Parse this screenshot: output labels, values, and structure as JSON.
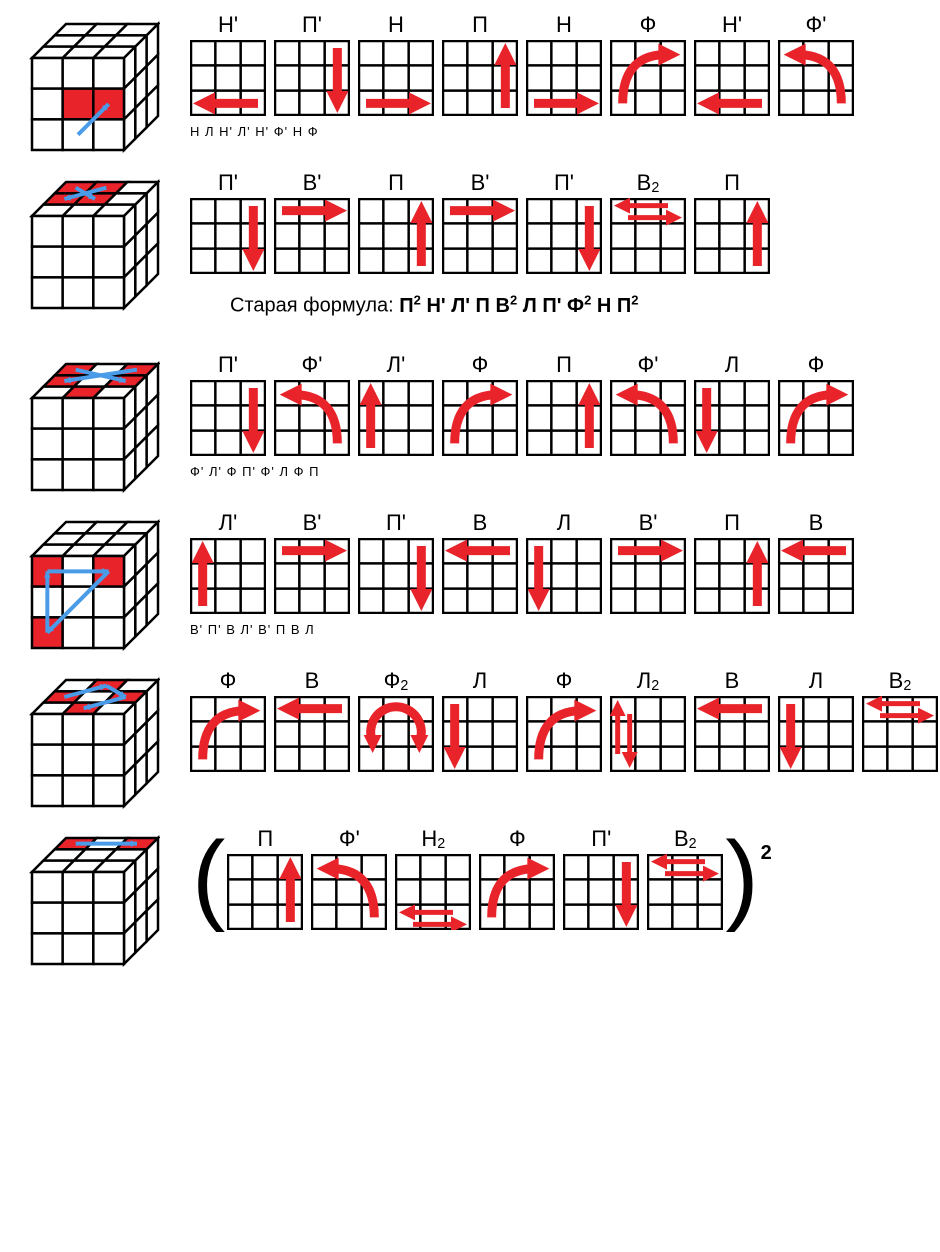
{
  "colors": {
    "arrow_red": "#e8242a",
    "arrow_blue": "#4a9be8",
    "grid_stroke": "#000000",
    "cube_fill": "#ffffff",
    "cube_red": "#e8242a",
    "bg": "#ffffff",
    "text": "#000000"
  },
  "grid_size": 76,
  "grid_cells": 3,
  "grid_stroke_width": 2.5,
  "cube_size": 140,
  "label_fontsize": 22,
  "subtext_fontsize": 13,
  "formula_fontsize": 20,
  "rows": [
    {
      "cube": {
        "top_red": [],
        "front_red": [
          "1,1",
          "2,1"
        ],
        "top_arrows": [],
        "front_arrows": [
          {
            "from": "1,2",
            "to": "2,1",
            "color": "blue"
          }
        ]
      },
      "moves": [
        {
          "label": "Н'",
          "arrow": "left-bottom"
        },
        {
          "label": "П'",
          "arrow": "down-right"
        },
        {
          "label": "Н",
          "arrow": "right-bottom"
        },
        {
          "label": "П",
          "arrow": "up-right"
        },
        {
          "label": "Н",
          "arrow": "right-bottom"
        },
        {
          "label": "Ф",
          "arrow": "curve-cw"
        },
        {
          "label": "Н'",
          "arrow": "left-bottom"
        },
        {
          "label": "Ф'",
          "arrow": "curve-ccw"
        }
      ],
      "subtext": "Н Л Н' Л'   Н' Ф' Н Ф"
    },
    {
      "cube": {
        "top_red": [
          "0,0",
          "1,0",
          "0,1",
          "1,1"
        ],
        "front_red": [],
        "top_arrows": [
          {
            "from": "0,0",
            "to": "1,1",
            "color": "blue"
          },
          {
            "from": "1,0",
            "to": "0,1",
            "color": "blue"
          }
        ],
        "front_arrows": []
      },
      "moves": [
        {
          "label": "П'",
          "arrow": "down-right"
        },
        {
          "label": "В'",
          "arrow": "right-top"
        },
        {
          "label": "П",
          "arrow": "up-right"
        },
        {
          "label": "В'",
          "arrow": "right-top"
        },
        {
          "label": "П'",
          "arrow": "down-right"
        },
        {
          "label": "В²",
          "arrow": "double-horiz-top"
        },
        {
          "label": "П",
          "arrow": "up-right"
        }
      ],
      "formula_text": "Старая формула: ",
      "formula_bold": "П² Н' Л' П В² Л П' Ф² Н П²"
    },
    {
      "cube": {
        "top_red": [
          "0,0",
          "2,0",
          "0,1",
          "2,1",
          "1,2"
        ],
        "front_red": [],
        "top_arrows": [
          {
            "from": "0,0",
            "to": "2,1",
            "color": "blue"
          },
          {
            "from": "2,0",
            "to": "0,1",
            "color": "blue"
          }
        ],
        "front_arrows": []
      },
      "moves": [
        {
          "label": "П'",
          "arrow": "down-right"
        },
        {
          "label": "Ф'",
          "arrow": "curve-ccw"
        },
        {
          "label": "Л'",
          "arrow": "up-left"
        },
        {
          "label": "Ф",
          "arrow": "curve-cw"
        },
        {
          "label": "П",
          "arrow": "up-right"
        },
        {
          "label": "Ф'",
          "arrow": "curve-ccw"
        },
        {
          "label": "Л",
          "arrow": "down-left"
        },
        {
          "label": "Ф",
          "arrow": "curve-cw"
        }
      ],
      "subtext": "Ф' Л' Ф П'   Ф' Л Ф П"
    },
    {
      "cube": {
        "top_red": [],
        "front_red": [
          "0,0",
          "2,0",
          "0,2"
        ],
        "top_arrows": [],
        "front_arrows": [
          {
            "from": "0,0",
            "to": "2,0",
            "color": "blue"
          },
          {
            "from": "2,0",
            "to": "0,2",
            "color": "blue"
          },
          {
            "from": "0,2",
            "to": "0,0",
            "color": "blue"
          }
        ]
      },
      "moves": [
        {
          "label": "Л'",
          "arrow": "up-left"
        },
        {
          "label": "В'",
          "arrow": "right-top"
        },
        {
          "label": "П'",
          "arrow": "down-right"
        },
        {
          "label": "В",
          "arrow": "left-top"
        },
        {
          "label": "Л",
          "arrow": "down-left"
        },
        {
          "label": "В'",
          "arrow": "right-top"
        },
        {
          "label": "П",
          "arrow": "up-right"
        },
        {
          "label": "В",
          "arrow": "left-top"
        }
      ],
      "subtext": "В' П' В Л'   В' П В Л"
    },
    {
      "cube": {
        "top_red": [
          "1,0",
          "0,1",
          "2,1",
          "1,2"
        ],
        "front_red": [],
        "top_arrows": [
          {
            "from": "1,0",
            "to": "2,1",
            "color": "blue"
          },
          {
            "from": "2,1",
            "to": "1,2",
            "color": "blue"
          },
          {
            "from": "0,1",
            "to": "1,0",
            "color": "blue"
          }
        ],
        "front_arrows": []
      },
      "moves": [
        {
          "label": "Ф",
          "arrow": "curve-cw"
        },
        {
          "label": "В",
          "arrow": "left-top"
        },
        {
          "label": "Ф²",
          "arrow": "arc-180"
        },
        {
          "label": "Л",
          "arrow": "down-left"
        },
        {
          "label": "Ф",
          "arrow": "curve-cw"
        },
        {
          "label": "Л²",
          "arrow": "double-vert-left"
        },
        {
          "label": "В",
          "arrow": "left-top"
        },
        {
          "label": "Л",
          "arrow": "down-left"
        },
        {
          "label": "В²",
          "arrow": "double-horiz-top"
        }
      ]
    },
    {
      "cube": {
        "top_red": [
          "0,0",
          "2,0"
        ],
        "front_red": [],
        "top_arrows": [
          {
            "from": "0,0",
            "to": "2,0",
            "color": "blue",
            "double": true
          }
        ],
        "front_arrows": []
      },
      "bracketed": true,
      "bracket_exponent": "2",
      "moves": [
        {
          "label": "П",
          "arrow": "up-right"
        },
        {
          "label": "Ф'",
          "arrow": "curve-ccw"
        },
        {
          "label": "Н²",
          "arrow": "double-horiz-bottom"
        },
        {
          "label": "Ф",
          "arrow": "curve-cw"
        },
        {
          "label": "П'",
          "arrow": "down-right"
        },
        {
          "label": "В²",
          "arrow": "double-horiz-top"
        }
      ]
    }
  ]
}
